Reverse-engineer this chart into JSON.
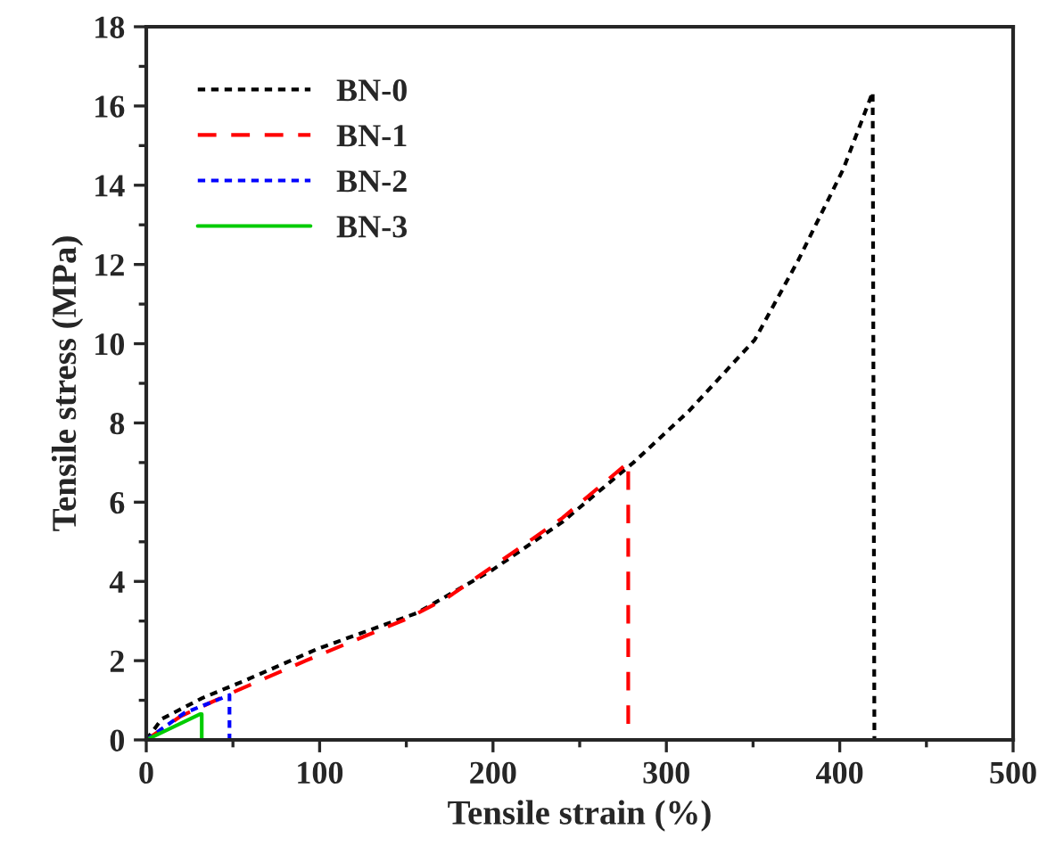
{
  "chart_data": {
    "type": "line",
    "xlabel": "Tensile strain (%)",
    "ylabel": "Tensile stress (MPa)",
    "xlim": [
      0,
      500
    ],
    "xticks": [
      0,
      100,
      200,
      300,
      400,
      500
    ],
    "ylim": [
      0,
      18
    ],
    "yticks": [
      0,
      2,
      4,
      6,
      8,
      10,
      12,
      14,
      16,
      18
    ],
    "grid": false,
    "legend": "top left",
    "marker": "none",
    "series": [
      {
        "name": "BN-0",
        "color": "#000000",
        "line_style": "dotted",
        "x": [
          0,
          9,
          32,
          57,
          99,
          156,
          200,
          240,
          281,
          313,
          351,
          376,
          402,
          419,
          420
        ],
        "values": [
          0,
          0.53,
          1.05,
          1.5,
          2.3,
          3.2,
          4.3,
          5.5,
          7.0,
          8.3,
          10.1,
          12.1,
          14.4,
          16.35,
          0
        ]
      },
      {
        "name": "BN-1",
        "color": "#ff0000",
        "line_style": "dashed",
        "x": [
          0,
          20,
          50,
          92,
          151,
          174,
          204,
          240,
          278,
          278
        ],
        "values": [
          0,
          0.6,
          1.2,
          2.0,
          3.07,
          3.6,
          4.5,
          5.6,
          7.0,
          0
        ]
      },
      {
        "name": "BN-2",
        "color": "#0000ff",
        "line_style": "dotted",
        "x": [
          0,
          22,
          48,
          48
        ],
        "values": [
          0,
          0.68,
          1.13,
          0
        ]
      },
      {
        "name": "BN-3",
        "color": "#00cc00",
        "line_style": "solid",
        "x": [
          0,
          31,
          32,
          32
        ],
        "values": [
          0,
          0.65,
          0.65,
          0
        ]
      }
    ]
  }
}
